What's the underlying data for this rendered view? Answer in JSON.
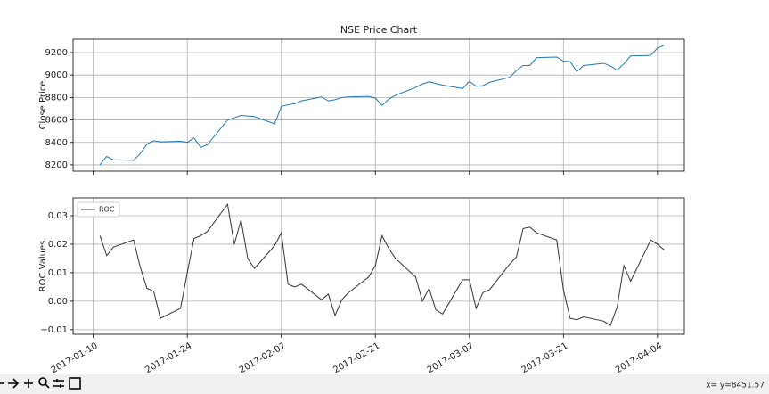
{
  "chart_data": [
    {
      "type": "line",
      "title": "NSE Price Chart",
      "ylabel": "Close Price",
      "x": [
        "2017-01-11",
        "2017-01-12",
        "2017-01-13",
        "2017-01-16",
        "2017-01-17",
        "2017-01-18",
        "2017-01-19",
        "2017-01-20",
        "2017-01-23",
        "2017-01-24",
        "2017-01-25",
        "2017-01-26",
        "2017-01-27",
        "2017-01-30",
        "2017-01-31",
        "2017-02-01",
        "2017-02-02",
        "2017-02-03",
        "2017-02-06",
        "2017-02-07",
        "2017-02-08",
        "2017-02-09",
        "2017-02-10",
        "2017-02-13",
        "2017-02-14",
        "2017-02-15",
        "2017-02-16",
        "2017-02-17",
        "2017-02-20",
        "2017-02-21",
        "2017-02-22",
        "2017-02-23",
        "2017-02-24",
        "2017-02-27",
        "2017-02-28",
        "2017-03-01",
        "2017-03-02",
        "2017-03-03",
        "2017-03-06",
        "2017-03-07",
        "2017-03-08",
        "2017-03-09",
        "2017-03-10",
        "2017-03-13",
        "2017-03-14",
        "2017-03-15",
        "2017-03-16",
        "2017-03-17",
        "2017-03-20",
        "2017-03-21",
        "2017-03-22",
        "2017-03-23",
        "2017-03-24",
        "2017-03-27",
        "2017-03-28",
        "2017-03-29",
        "2017-03-30",
        "2017-03-31",
        "2017-04-03",
        "2017-04-04",
        "2017-04-05"
      ],
      "series": [
        {
          "color": "#1f77b4",
          "values": [
            8200,
            8275,
            8245,
            8240,
            8300,
            8385,
            8415,
            8405,
            8410,
            8400,
            8440,
            8355,
            8380,
            8600,
            8620,
            8640,
            8635,
            8630,
            8565,
            8720,
            8735,
            8745,
            8770,
            8805,
            8770,
            8780,
            8800,
            8805,
            8810,
            8795,
            8730,
            8785,
            8820,
            8890,
            8920,
            8940,
            8925,
            8910,
            8880,
            8945,
            8900,
            8905,
            8935,
            8980,
            9040,
            9085,
            9085,
            9155,
            9160,
            9125,
            9120,
            9030,
            9085,
            9105,
            9080,
            9045,
            9100,
            9170,
            9175,
            9240,
            9265
          ]
        }
      ],
      "xlim": [
        "2017-01-07",
        "2017-04-08"
      ],
      "xticks": [
        "2017-01-10",
        "2017-01-24",
        "2017-02-07",
        "2017-02-21",
        "2017-03-07",
        "2017-03-21",
        "2017-04-04"
      ],
      "ylim": [
        8144,
        9319
      ],
      "yticks": [
        8200,
        8400,
        8600,
        8800,
        9000,
        9200
      ],
      "grid": true
    },
    {
      "type": "line",
      "ylabel": "ROC Values",
      "legend": "upper left",
      "x": [
        "2017-01-11",
        "2017-01-12",
        "2017-01-13",
        "2017-01-16",
        "2017-01-17",
        "2017-01-18",
        "2017-01-19",
        "2017-01-20",
        "2017-01-23",
        "2017-01-24",
        "2017-01-25",
        "2017-01-26",
        "2017-01-27",
        "2017-01-30",
        "2017-01-31",
        "2017-02-01",
        "2017-02-02",
        "2017-02-03",
        "2017-02-06",
        "2017-02-07",
        "2017-02-08",
        "2017-02-09",
        "2017-02-10",
        "2017-02-13",
        "2017-02-14",
        "2017-02-15",
        "2017-02-16",
        "2017-02-17",
        "2017-02-20",
        "2017-02-21",
        "2017-02-22",
        "2017-02-23",
        "2017-02-24",
        "2017-02-27",
        "2017-02-28",
        "2017-03-01",
        "2017-03-02",
        "2017-03-03",
        "2017-03-06",
        "2017-03-07",
        "2017-03-08",
        "2017-03-09",
        "2017-03-10",
        "2017-03-13",
        "2017-03-14",
        "2017-03-15",
        "2017-03-16",
        "2017-03-17",
        "2017-03-20",
        "2017-03-21",
        "2017-03-22",
        "2017-03-23",
        "2017-03-24",
        "2017-03-27",
        "2017-03-28",
        "2017-03-29",
        "2017-03-30",
        "2017-03-31",
        "2017-04-03",
        "2017-04-04",
        "2017-04-05"
      ],
      "series": [
        {
          "name": "ROC",
          "color": "#333333",
          "values": [
            0.023,
            0.016,
            0.019,
            0.0215,
            0.012,
            0.0045,
            0.0035,
            -0.006,
            -0.0025,
            0.01,
            0.022,
            0.023,
            0.0245,
            0.034,
            0.02,
            0.0285,
            0.015,
            0.0115,
            0.0195,
            0.024,
            0.006,
            0.005,
            0.006,
            0.0005,
            0.0025,
            -0.005,
            0.0005,
            0.003,
            0.0085,
            0.0125,
            0.023,
            0.0185,
            0.015,
            0.0085,
            0.0,
            0.0045,
            -0.003,
            -0.0045,
            0.0075,
            0.0075,
            -0.0025,
            0.003,
            0.004,
            0.013,
            0.0155,
            0.0255,
            0.026,
            0.024,
            0.0215,
            0.004,
            -0.006,
            -0.0065,
            -0.0055,
            -0.007,
            -0.0085,
            -0.002,
            0.0125,
            0.007,
            0.0215,
            0.02,
            0.018
          ]
        }
      ],
      "xlim": [
        "2017-01-07",
        "2017-04-08"
      ],
      "xticks": [
        "2017-01-10",
        "2017-01-24",
        "2017-02-07",
        "2017-02-21",
        "2017-03-07",
        "2017-03-21",
        "2017-04-04"
      ],
      "ylim": [
        -0.0116,
        0.03625
      ],
      "yticks": [
        {
          "value": -0.01,
          "label": "−0.01"
        },
        {
          "value": 0,
          "label": "0.00"
        },
        0.01,
        0.02,
        0.03
      ],
      "grid": true
    }
  ],
  "status_bar": "x= y=8451.57"
}
